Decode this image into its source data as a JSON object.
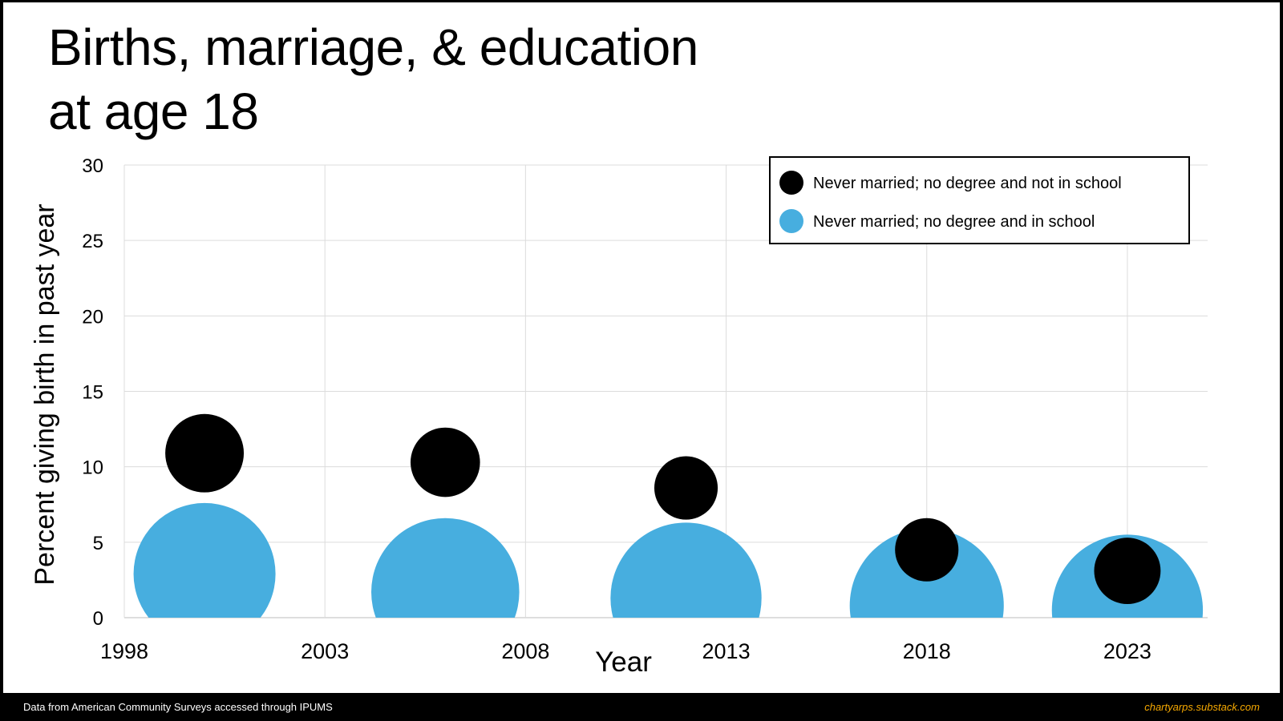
{
  "title_line1": "Births, marriage, & education",
  "title_line2": "at age 18",
  "footer": {
    "source": "Data from American Community Surveys accessed through IPUMS",
    "credit": "chartyarps.substack.com",
    "credit_color": "#f5a800"
  },
  "chart_data": {
    "type": "scatter",
    "xlabel": "Year",
    "ylabel": "Percent giving birth in past year",
    "xlim": [
      1998,
      2025
    ],
    "ylim": [
      0,
      30
    ],
    "xticks": [
      1998,
      2003,
      2008,
      2013,
      2018,
      2023
    ],
    "yticks": [
      0,
      5,
      10,
      15,
      20,
      25,
      30
    ],
    "grid": true,
    "legend_position": "top-right",
    "series": [
      {
        "name": "Never married; no degree and in school",
        "color": "#47aedf",
        "points": [
          {
            "x": 2000,
            "y": 2.9,
            "size": 4.7
          },
          {
            "x": 2006,
            "y": 1.7,
            "size": 4.9
          },
          {
            "x": 2012,
            "y": 1.3,
            "size": 5.0
          },
          {
            "x": 2018,
            "y": 0.8,
            "size": 5.1
          },
          {
            "x": 2023,
            "y": 0.5,
            "size": 5.0
          }
        ]
      },
      {
        "name": "Never married; no degree and not in school",
        "color": "#000000",
        "points": [
          {
            "x": 2000,
            "y": 10.9,
            "size": 2.6
          },
          {
            "x": 2006,
            "y": 10.3,
            "size": 2.3
          },
          {
            "x": 2012,
            "y": 8.6,
            "size": 2.1
          },
          {
            "x": 2018,
            "y": 4.5,
            "size": 2.1
          },
          {
            "x": 2023,
            "y": 3.1,
            "size": 2.2
          }
        ]
      }
    ],
    "legend_order": [
      1,
      0
    ]
  }
}
